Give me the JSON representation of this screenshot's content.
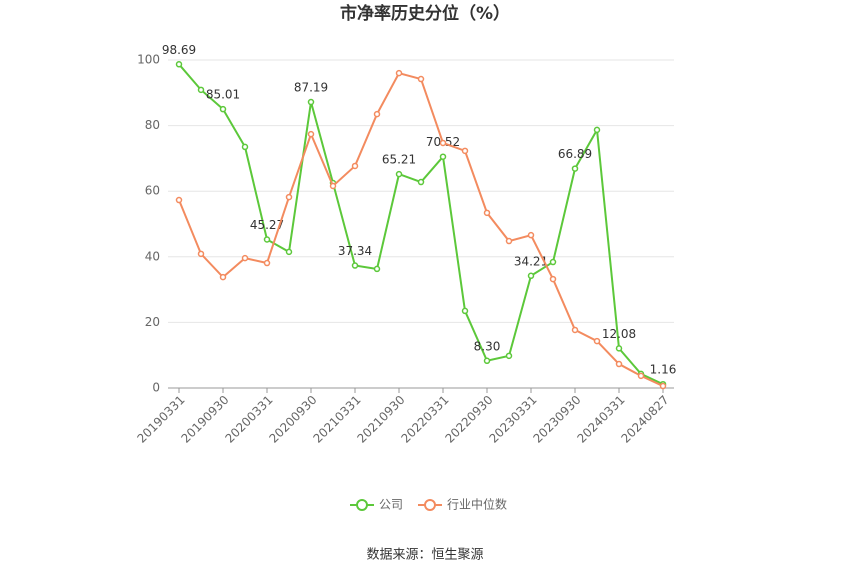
{
  "chart_data": {
    "type": "line",
    "title": "市净率历史分位（%）",
    "categories": [
      "20190331",
      null,
      "20190930",
      null,
      "20200331",
      null,
      "20200930",
      null,
      "20210331",
      null,
      "20210930",
      null,
      "20220331",
      null,
      "20220930",
      null,
      "20230331",
      null,
      "20230930",
      null,
      "20240331",
      null,
      "20240827"
    ],
    "series": [
      {
        "name": "公司",
        "color": "#5cc83a",
        "values": [
          98.69,
          90.9,
          85.01,
          73.5,
          45.27,
          41.5,
          87.19,
          62.5,
          37.34,
          36.3,
          65.21,
          62.8,
          70.52,
          23.5,
          8.3,
          9.8,
          34.21,
          38.4,
          66.89,
          78.7,
          12.08,
          4.3,
          1.16
        ],
        "value_labels": [
          "98.69",
          null,
          "85.01",
          null,
          "45.27",
          null,
          "87.19",
          null,
          "37.34",
          null,
          "65.21",
          null,
          "70.52",
          null,
          "8.30",
          null,
          "34.21",
          null,
          "66.89",
          null,
          "12.08",
          null,
          "1.16"
        ]
      },
      {
        "name": "行业中位数",
        "color": "#f38b5f",
        "values": [
          57.3,
          40.9,
          33.8,
          39.6,
          38.1,
          58.2,
          77.4,
          61.6,
          67.7,
          83.5,
          96.0,
          94.2,
          74.7,
          72.3,
          53.4,
          44.8,
          46.6,
          33.2,
          17.7,
          14.3,
          7.3,
          3.7,
          0.6
        ]
      }
    ],
    "ylim": [
      0,
      100
    ],
    "yticks": [
      0,
      20,
      40,
      60,
      80,
      100
    ],
    "grid": true,
    "source": "数据来源：恒生聚源"
  }
}
